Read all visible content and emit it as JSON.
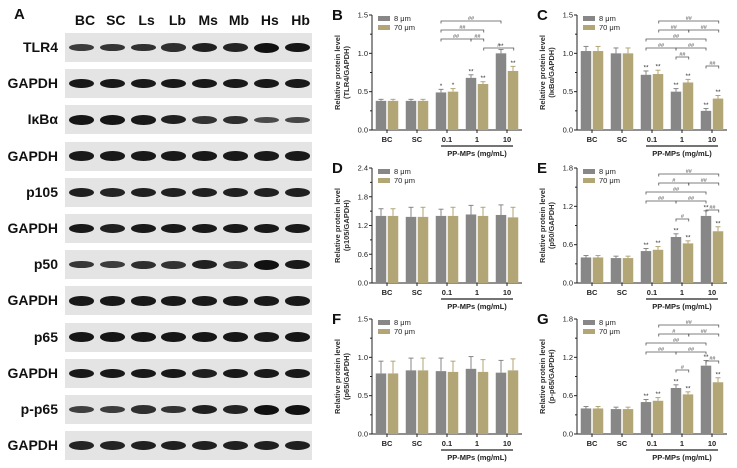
{
  "figure": {
    "panel_a": {
      "letter": "A",
      "lanes": [
        "BC",
        "SC",
        "Ls",
        "Lb",
        "Ms",
        "Mb",
        "Hs",
        "Hb"
      ],
      "rows": [
        {
          "label": "TLR4",
          "intensity": [
            0.55,
            0.62,
            0.66,
            0.7,
            0.85,
            0.8,
            1.0,
            0.95
          ]
        },
        {
          "label": "GAPDH",
          "intensity": [
            0.9,
            0.9,
            0.9,
            0.9,
            0.9,
            0.9,
            0.9,
            0.9
          ]
        },
        {
          "label": "IκBα",
          "intensity": [
            0.95,
            0.95,
            0.9,
            0.85,
            0.65,
            0.7,
            0.4,
            0.45
          ]
        },
        {
          "label": "GAPDH",
          "intensity": [
            0.9,
            0.9,
            0.9,
            0.9,
            0.9,
            0.9,
            0.9,
            0.9
          ]
        },
        {
          "label": "p105",
          "intensity": [
            0.85,
            0.8,
            0.85,
            0.85,
            0.85,
            0.85,
            0.85,
            0.85
          ]
        },
        {
          "label": "GAPDH",
          "intensity": [
            0.9,
            0.85,
            0.9,
            0.9,
            0.9,
            0.9,
            0.9,
            0.9
          ]
        },
        {
          "label": "p50",
          "intensity": [
            0.6,
            0.55,
            0.7,
            0.65,
            0.85,
            0.7,
            1.0,
            0.9
          ]
        },
        {
          "label": "GAPDH",
          "intensity": [
            0.9,
            0.9,
            0.9,
            0.9,
            0.9,
            0.9,
            0.9,
            0.9
          ]
        },
        {
          "label": "p65",
          "intensity": [
            0.95,
            0.95,
            0.95,
            0.95,
            0.95,
            0.95,
            0.9,
            0.95
          ]
        },
        {
          "label": "GAPDH",
          "intensity": [
            0.9,
            0.9,
            0.9,
            0.9,
            0.85,
            0.9,
            0.9,
            0.9
          ]
        },
        {
          "label": "p-p65",
          "intensity": [
            0.5,
            0.55,
            0.7,
            0.65,
            0.85,
            0.8,
            1.0,
            1.0
          ]
        },
        {
          "label": "GAPDH",
          "intensity": [
            0.8,
            0.8,
            0.85,
            0.85,
            0.85,
            0.85,
            0.85,
            0.85
          ]
        }
      ]
    }
  },
  "colors": {
    "series_8um": "#878787",
    "series_70um": "#b2a677",
    "axis": "#222222",
    "blot_background": "#e4e4e4",
    "band": "#111111"
  },
  "chart_data": [
    {
      "panel": "B",
      "type": "bar",
      "title": "",
      "xlabel": "PP-MPs (mg/mL)",
      "ylabel": "Relative protein level",
      "ylabel2": "(TLR4/GAPDH)",
      "ylim": [
        0,
        1.5
      ],
      "yticks": [
        "0.0",
        "0.5",
        "1.0",
        "1.5"
      ],
      "categories": [
        "BC",
        "SC",
        "0.1",
        "1",
        "10"
      ],
      "legend": [
        "8 μm",
        "70 μm"
      ],
      "legend_position": "upper-left",
      "grid": false,
      "series": [
        {
          "name": "8 μm",
          "values": [
            0.38,
            0.38,
            0.49,
            0.68,
            1.0
          ],
          "errors": [
            0.02,
            0.02,
            0.04,
            0.04,
            0.05
          ],
          "marks": [
            "",
            "",
            "*",
            "**",
            "**"
          ]
        },
        {
          "name": "70 μm",
          "values": [
            0.38,
            0.38,
            0.5,
            0.6,
            0.77
          ],
          "errors": [
            0.02,
            0.02,
            0.04,
            0.03,
            0.06
          ],
          "marks": [
            "",
            "",
            "*",
            "**",
            "**"
          ]
        }
      ],
      "brackets": [
        {
          "from": 2,
          "to": 4,
          "level": 3,
          "label": "##"
        },
        {
          "from": 2,
          "to": 3.95,
          "level": 2,
          "label": "##"
        },
        {
          "from": 2,
          "to": 3,
          "level": 1,
          "label": "##"
        },
        {
          "from": 3,
          "to": 3.95,
          "level": 1,
          "label": "##"
        },
        {
          "from": 3.95,
          "to": 4.2,
          "level": 0,
          "label": "#"
        }
      ]
    },
    {
      "panel": "C",
      "type": "bar",
      "xlabel": "PP-MPs (mg/mL)",
      "ylabel": "Relative protein level",
      "ylabel2": "(IκBα/GAPDH)",
      "ylim": [
        0,
        1.5
      ],
      "yticks": [
        "0.0",
        "0.5",
        "1.0",
        "1.5"
      ],
      "categories": [
        "BC",
        "SC",
        "0.1",
        "1",
        "10"
      ],
      "legend": [
        "8 μm",
        "70 μm"
      ],
      "legend_position": "upper-left",
      "grid": false,
      "series": [
        {
          "name": "8 μm",
          "values": [
            1.03,
            1.0,
            0.72,
            0.5,
            0.25
          ],
          "errors": [
            0.06,
            0.07,
            0.05,
            0.04,
            0.03
          ],
          "marks": [
            "",
            "",
            "**",
            "**",
            "**"
          ]
        },
        {
          "name": "70 μm",
          "values": [
            1.03,
            1.0,
            0.73,
            0.62,
            0.41
          ],
          "errors": [
            0.06,
            0.07,
            0.05,
            0.04,
            0.04
          ],
          "marks": [
            "",
            "",
            "**",
            "**",
            "**"
          ]
        }
      ],
      "brackets": [
        {
          "from": 2.2,
          "to": 4.2,
          "level": 4,
          "label": "##"
        },
        {
          "from": 2.2,
          "to": 3.2,
          "level": 3,
          "label": "##"
        },
        {
          "from": 3.2,
          "to": 4.2,
          "level": 3,
          "label": "##"
        },
        {
          "from": 2,
          "to": 4,
          "level": 2,
          "label": "##"
        },
        {
          "from": 2,
          "to": 3,
          "level": 1,
          "label": "##"
        },
        {
          "from": 3,
          "to": 4,
          "level": 1,
          "label": "##"
        },
        {
          "from": 3,
          "to": 3.2,
          "level": 0,
          "label": "##"
        },
        {
          "from": 4,
          "to": 4.2,
          "level": -1,
          "label": "##"
        }
      ]
    },
    {
      "panel": "D",
      "type": "bar",
      "xlabel": "PP-MPs (mg/mL)",
      "ylabel": "Relative protein level",
      "ylabel2": "(p105/GAPDH)",
      "ylim": [
        0,
        2.4
      ],
      "yticks": [
        "0.0",
        "0.6",
        "1.2",
        "1.8",
        "2.4"
      ],
      "categories": [
        "BC",
        "SC",
        "0.1",
        "1",
        "10"
      ],
      "legend": [
        "8 μm",
        "70 μm"
      ],
      "legend_position": "upper-left",
      "grid": false,
      "series": [
        {
          "name": "8 μm",
          "values": [
            1.4,
            1.38,
            1.4,
            1.43,
            1.42
          ],
          "errors": [
            0.15,
            0.2,
            0.14,
            0.19,
            0.21
          ],
          "marks": [
            "",
            "",
            "",
            "",
            ""
          ]
        },
        {
          "name": "70 μm",
          "values": [
            1.4,
            1.38,
            1.4,
            1.4,
            1.37
          ],
          "errors": [
            0.15,
            0.2,
            0.18,
            0.18,
            0.21
          ],
          "marks": [
            "",
            "",
            "",
            "",
            ""
          ]
        }
      ],
      "brackets": []
    },
    {
      "panel": "E",
      "type": "bar",
      "xlabel": "PP-MPs (mg/mL)",
      "ylabel": "Relative protein level",
      "ylabel2": "(p50/GAPDH)",
      "ylim": [
        0,
        1.8
      ],
      "yticks": [
        "0.0",
        "0.6",
        "1.2",
        "1.8"
      ],
      "categories": [
        "BC",
        "SC",
        "0.1",
        "1",
        "10"
      ],
      "legend": [
        "8 μm",
        "70 μm"
      ],
      "legend_position": "upper-left",
      "grid": false,
      "series": [
        {
          "name": "8 μm",
          "values": [
            0.4,
            0.39,
            0.5,
            0.72,
            1.05
          ],
          "errors": [
            0.03,
            0.03,
            0.04,
            0.05,
            0.08
          ],
          "marks": [
            "",
            "",
            "**",
            "**",
            "**"
          ]
        },
        {
          "name": "70 μm",
          "values": [
            0.4,
            0.39,
            0.52,
            0.62,
            0.81
          ],
          "errors": [
            0.03,
            0.03,
            0.05,
            0.04,
            0.07
          ],
          "marks": [
            "",
            "",
            "**",
            "**",
            "**"
          ]
        }
      ],
      "brackets": [
        {
          "from": 2.2,
          "to": 4.2,
          "level": 4,
          "label": "##"
        },
        {
          "from": 2.2,
          "to": 3.2,
          "level": 3,
          "label": "#"
        },
        {
          "from": 3.2,
          "to": 4.2,
          "level": 3,
          "label": "##"
        },
        {
          "from": 2,
          "to": 4,
          "level": 2,
          "label": "##"
        },
        {
          "from": 2,
          "to": 3,
          "level": 1,
          "label": "##"
        },
        {
          "from": 3,
          "to": 4,
          "level": 1,
          "label": "##"
        },
        {
          "from": 4,
          "to": 4.2,
          "level": 0,
          "label": "##"
        },
        {
          "from": 3,
          "to": 3.2,
          "level": -1,
          "label": "#"
        }
      ]
    },
    {
      "panel": "F",
      "type": "bar",
      "xlabel": "PP-MPs (mg/mL)",
      "ylabel": "Relative protein level",
      "ylabel2": "(p65/GAPDH)",
      "ylim": [
        0,
        1.5
      ],
      "yticks": [
        "0.0",
        "0.5",
        "1.0",
        "1.5"
      ],
      "categories": [
        "BC",
        "SC",
        "0.1",
        "1",
        "10"
      ],
      "legend": [
        "8 μm",
        "70 μm"
      ],
      "legend_position": "upper-left",
      "grid": false,
      "series": [
        {
          "name": "8 μm",
          "values": [
            0.79,
            0.83,
            0.82,
            0.85,
            0.8
          ],
          "errors": [
            0.16,
            0.16,
            0.17,
            0.16,
            0.16
          ],
          "marks": [
            "",
            "",
            "",
            "",
            ""
          ]
        },
        {
          "name": "70 μm",
          "values": [
            0.79,
            0.83,
            0.81,
            0.81,
            0.83
          ],
          "errors": [
            0.16,
            0.16,
            0.14,
            0.16,
            0.15
          ],
          "marks": [
            "",
            "",
            "",
            "",
            ""
          ]
        }
      ],
      "brackets": []
    },
    {
      "panel": "G",
      "type": "bar",
      "xlabel": "PP-MPs (mg/mL)",
      "ylabel": "Relative protein level",
      "ylabel2": "(p-p65/GAPDH)",
      "ylim": [
        0,
        1.8
      ],
      "yticks": [
        "0.0",
        "0.6",
        "1.2",
        "1.8"
      ],
      "categories": [
        "BC",
        "SC",
        "0.1",
        "1",
        "10"
      ],
      "legend": [
        "8 μm",
        "70 μm"
      ],
      "legend_position": "upper-left",
      "grid": false,
      "series": [
        {
          "name": "8 μm",
          "values": [
            0.4,
            0.39,
            0.5,
            0.72,
            1.07
          ],
          "errors": [
            0.03,
            0.03,
            0.04,
            0.05,
            0.08
          ],
          "marks": [
            "",
            "",
            "**",
            "**",
            "**"
          ]
        },
        {
          "name": "70 μm",
          "values": [
            0.4,
            0.39,
            0.52,
            0.62,
            0.81
          ],
          "errors": [
            0.03,
            0.03,
            0.05,
            0.04,
            0.07
          ],
          "marks": [
            "",
            "",
            "**",
            "**",
            "**"
          ]
        }
      ],
      "brackets": [
        {
          "from": 2.2,
          "to": 4.2,
          "level": 4,
          "label": "##"
        },
        {
          "from": 2.2,
          "to": 3.2,
          "level": 3,
          "label": "#"
        },
        {
          "from": 3.2,
          "to": 4.2,
          "level": 3,
          "label": "##"
        },
        {
          "from": 2,
          "to": 4,
          "level": 2,
          "label": "##"
        },
        {
          "from": 2,
          "to": 3,
          "level": 1,
          "label": "##"
        },
        {
          "from": 3,
          "to": 4,
          "level": 1,
          "label": "##"
        },
        {
          "from": 4,
          "to": 4.2,
          "level": 0,
          "label": "##"
        },
        {
          "from": 3,
          "to": 3.2,
          "level": -1,
          "label": "#"
        }
      ]
    }
  ]
}
